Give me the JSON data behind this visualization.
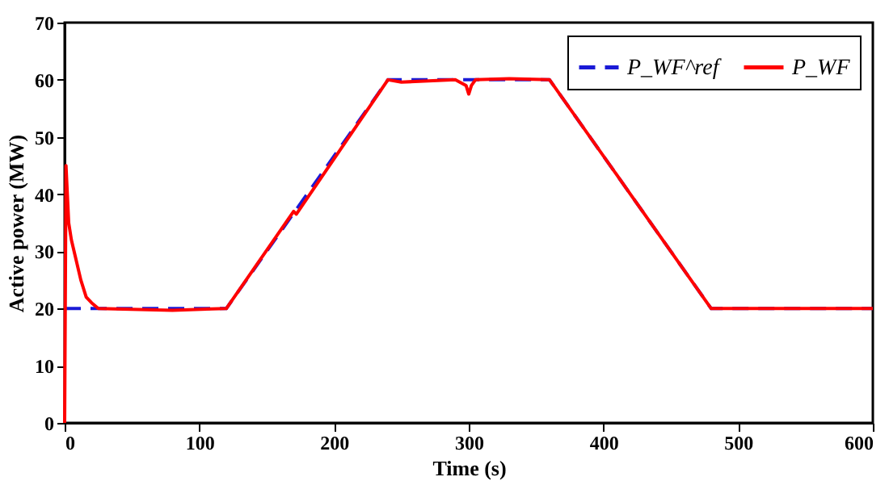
{
  "chart_data": {
    "type": "line",
    "xlabel": "Time (s)",
    "ylabel": "Active power (MW)",
    "xlim": [
      0,
      600
    ],
    "xticks": [
      0,
      100,
      200,
      300,
      400,
      500,
      600
    ],
    "ylim": [
      0,
      70
    ],
    "yticks": [
      0,
      10,
      20,
      30,
      40,
      50,
      60,
      70
    ],
    "grid": false,
    "legend": "top right",
    "marker": "none",
    "series": [
      {
        "name": "P_WF^ref",
        "color": "#1a1ad6",
        "line_style": "dashed",
        "x": [
          0,
          120,
          240,
          360,
          480,
          600
        ],
        "values": [
          20,
          20,
          60,
          60,
          20,
          20
        ]
      },
      {
        "name": "P_WF",
        "color": "#ff0000",
        "line_style": "solid",
        "x": [
          0,
          1,
          2,
          3,
          5,
          8,
          12,
          16,
          20,
          25,
          80,
          120,
          170,
          172,
          240,
          250,
          290,
          298,
          300,
          302,
          305,
          330,
          360,
          420,
          480,
          600
        ],
        "values": [
          0,
          45,
          40,
          35,
          32,
          29,
          25,
          22,
          21,
          20,
          19.7,
          20,
          37,
          36.5,
          60,
          59.6,
          60,
          59,
          57.5,
          59,
          60,
          60.2,
          60,
          40,
          20,
          20
        ]
      }
    ]
  }
}
